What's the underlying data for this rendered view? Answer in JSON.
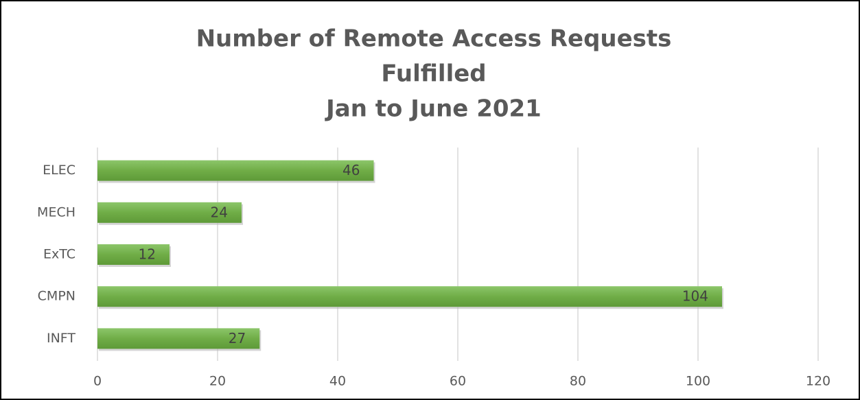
{
  "chart_data": {
    "type": "bar",
    "orientation": "horizontal",
    "title": [
      "Number of Remote Access Requests",
      "Fulfilled",
      "Jan to June 2021"
    ],
    "categories": [
      "ELEC",
      "MECH",
      "ExTC",
      "CMPN",
      "INFT"
    ],
    "values": [
      46,
      24,
      12,
      104,
      27
    ],
    "color": "#70ad47",
    "xlim": [
      0,
      120
    ],
    "xticks": [
      0,
      20,
      40,
      60,
      80,
      100,
      120
    ],
    "grid": true,
    "data_labels": true
  }
}
